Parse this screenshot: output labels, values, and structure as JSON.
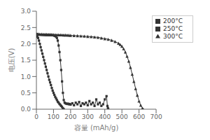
{
  "chart_data": {
    "type": "line",
    "title": "",
    "xlabel": "容量 (mAh/g)",
    "ylabel": "电压(V)",
    "xlim": [
      0,
      700
    ],
    "ylim": [
      0,
      3
    ],
    "xticks": [
      0,
      100,
      200,
      300,
      400,
      500,
      600,
      700
    ],
    "yticks": [
      {
        "value": 0,
        "label": "0.0"
      },
      0.5,
      {
        "value": 1,
        "label": "1.0"
      },
      1.5,
      {
        "value": 2,
        "label": "2.0"
      },
      2.5,
      {
        "value": 3,
        "label": "3.0"
      }
    ],
    "grid": false,
    "legend": "upper right",
    "series": [
      {
        "name": "200°C",
        "color": "#333333",
        "marker": "square",
        "x": [
          0,
          5,
          10,
          15,
          20,
          25,
          30,
          35,
          40,
          45,
          50,
          55,
          60,
          65,
          70,
          75,
          80,
          85,
          90,
          95,
          100,
          105,
          110,
          115,
          120,
          125,
          130,
          135,
          140,
          145,
          150,
          155,
          160
        ],
        "values": [
          2.25,
          2.22,
          2.18,
          2.1,
          2.0,
          1.9,
          1.8,
          1.7,
          1.6,
          1.5,
          1.4,
          1.3,
          1.2,
          1.1,
          1.0,
          0.9,
          0.82,
          0.74,
          0.65,
          0.57,
          0.5,
          0.44,
          0.38,
          0.33,
          0.28,
          0.23,
          0.2,
          0.16,
          0.13,
          0.1,
          0.07,
          0.03,
          0.0
        ]
      },
      {
        "name": "250°C",
        "color": "#333333",
        "marker": "square",
        "x": [
          0,
          5,
          10,
          15,
          20,
          25,
          30,
          35,
          40,
          45,
          50,
          55,
          60,
          65,
          70,
          75,
          80,
          85,
          90,
          95,
          100,
          105,
          110,
          115,
          120,
          125,
          130,
          135,
          140,
          145,
          150,
          155,
          160,
          165,
          170,
          175,
          180,
          185,
          190,
          195,
          200,
          210,
          220,
          230,
          240,
          250,
          260,
          270,
          280,
          290,
          300,
          310,
          320,
          330,
          340,
          350,
          360,
          370,
          380,
          390,
          400,
          410,
          415,
          418,
          420
        ],
        "values": [
          2.3,
          2.29,
          2.285,
          2.282,
          2.28,
          2.279,
          2.278,
          2.277,
          2.276,
          2.275,
          2.274,
          2.273,
          2.272,
          2.271,
          2.27,
          2.269,
          2.268,
          2.267,
          2.265,
          2.263,
          2.26,
          2.25,
          2.24,
          2.22,
          2.18,
          2.1,
          1.95,
          1.75,
          1.5,
          1.2,
          0.85,
          0.5,
          0.28,
          0.2,
          0.18,
          0.17,
          0.16,
          0.17,
          0.15,
          0.16,
          0.14,
          0.18,
          0.12,
          0.2,
          0.15,
          0.22,
          0.1,
          0.18,
          0.15,
          0.2,
          0.12,
          0.25,
          0.15,
          0.2,
          0.1,
          0.3,
          0.15,
          0.2,
          0.1,
          0.15,
          0.3,
          0.4,
          0.1,
          0.04,
          0.0
        ]
      },
      {
        "name": "300°C",
        "color": "#333333",
        "marker": "triangle",
        "x": [
          0,
          10,
          20,
          30,
          40,
          50,
          60,
          70,
          80,
          90,
          100,
          110,
          120,
          130,
          140,
          150,
          160,
          170,
          180,
          190,
          200,
          220,
          240,
          260,
          280,
          300,
          320,
          340,
          360,
          380,
          400,
          420,
          440,
          460,
          480,
          490,
          500,
          510,
          520,
          530,
          540,
          550,
          560,
          570,
          580,
          590,
          600,
          610,
          620,
          625
        ],
        "values": [
          2.31,
          2.305,
          2.3,
          2.298,
          2.296,
          2.294,
          2.292,
          2.29,
          2.288,
          2.286,
          2.284,
          2.282,
          2.28,
          2.278,
          2.276,
          2.274,
          2.272,
          2.27,
          2.268,
          2.265,
          2.262,
          2.256,
          2.25,
          2.243,
          2.236,
          2.228,
          2.22,
          2.21,
          2.2,
          2.18,
          2.16,
          2.14,
          2.11,
          2.07,
          2.02,
          1.98,
          1.93,
          1.85,
          1.75,
          1.62,
          1.47,
          1.28,
          1.07,
          0.85,
          0.63,
          0.43,
          0.25,
          0.12,
          0.03,
          0.0
        ]
      }
    ]
  }
}
